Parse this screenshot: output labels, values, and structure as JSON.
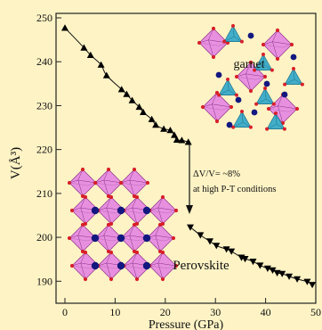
{
  "chart_data": {
    "type": "scatter",
    "xlabel": "Pressure (GPa)",
    "ylabel": "V(Å³)",
    "xlim": [
      0,
      50
    ],
    "ylim": [
      186,
      250
    ],
    "xticks": [
      0,
      10,
      20,
      30,
      40,
      50
    ],
    "yticks": [
      190,
      200,
      210,
      220,
      230,
      240,
      250
    ],
    "xtick_labels": [
      "0",
      "10",
      "20",
      "30",
      "40",
      "50"
    ],
    "ytick_labels": [
      "190",
      "200",
      "210",
      "220",
      "230",
      "240",
      "250"
    ],
    "grid": false,
    "series": [
      {
        "marker": "triangle-up",
        "color": "#000000",
        "x": [
          0,
          3.8,
          5.1,
          7.2,
          8.3,
          11.3,
          12.3,
          13.4,
          14.8,
          15.6,
          17.3,
          18.1,
          19.7,
          21,
          21.8,
          22.3,
          23.3,
          24.6
        ],
        "y": [
          247.7,
          243.2,
          241.5,
          239.3,
          236.9,
          233.7,
          232.6,
          231.2,
          229.7,
          228.5,
          226.9,
          225.6,
          224.7,
          224.4,
          223.3,
          222.2,
          222.1,
          221.7
        ]
      },
      {
        "marker": "triangle-down",
        "color": "#000000",
        "x": [
          25,
          27,
          28.9,
          30.2,
          32.2,
          33.2,
          35.2,
          35.9,
          37.5,
          38.9,
          40.4,
          41.4,
          42.3,
          43.3,
          44.7,
          46.3,
          48.3,
          49.3
        ],
        "y": [
          202.3,
          200.5,
          199.1,
          198.1,
          197.3,
          196.8,
          195.4,
          195.1,
          194.5,
          193.6,
          192.9,
          192.5,
          191.9,
          191.7,
          191.1,
          190.5,
          189.9,
          189.2
        ]
      }
    ],
    "annotations": {
      "garnet": "garnet",
      "perovskite": "Perovskite",
      "delta_line1": "ΔV/V= ~8%",
      "delta_line2": "at high P-T conditions"
    },
    "colors": {
      "background": "#fdf3c5",
      "polyhedron_pink": "#e37ee3",
      "polyhedron_blue": "#2ea6c9",
      "oxygen_red": "#d8202a",
      "cation_navy": "#12187f"
    }
  }
}
